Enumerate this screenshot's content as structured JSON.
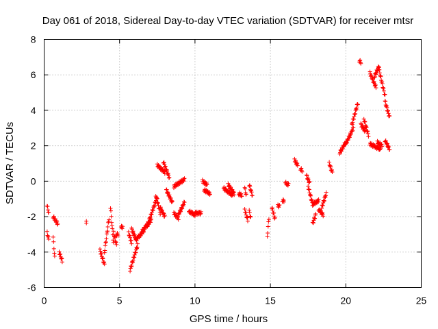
{
  "chart_data": {
    "type": "scatter",
    "title": "Day 061 of 2018, Sidereal Day-to-day VTEC variation (SDTVAR) for receiver mtsr",
    "xlabel": "GPS time / hours",
    "ylabel": "SDTVAR / TECUs",
    "xlim": [
      0,
      25
    ],
    "ylim": [
      -6,
      8
    ],
    "x_ticks": [
      0,
      5,
      10,
      15,
      20,
      25
    ],
    "y_ticks": [
      -6,
      -4,
      -2,
      0,
      2,
      4,
      6,
      8
    ],
    "x_tick_labels": [
      "0",
      "5",
      "10",
      "15",
      "20",
      "25"
    ],
    "y_tick_labels": [
      "-6",
      "-4",
      "-2",
      "0",
      "2",
      "4",
      "6",
      "8"
    ],
    "grid": true,
    "marker": "plus",
    "color": "#ff0000",
    "segments": [
      {
        "t0": 0.2,
        "t1": 0.3,
        "v0": -1.4,
        "v1": -1.8
      },
      {
        "t0": 0.2,
        "t1": 0.3,
        "v0": -2.9,
        "v1": -3.3
      },
      {
        "t0": 0.6,
        "t1": 0.9,
        "v0": -2.0,
        "v1": -2.4
      },
      {
        "t0": 0.6,
        "t1": 0.7,
        "v0": -3.2,
        "v1": -4.3
      },
      {
        "t0": 1.0,
        "t1": 1.2,
        "v0": -4.0,
        "v1": -4.5
      },
      {
        "t0": 2.8,
        "t1": 2.8,
        "v0": -2.3,
        "v1": -2.3
      },
      {
        "t0": 3.7,
        "t1": 4.0,
        "v0": -3.9,
        "v1": -4.7
      },
      {
        "t0": 4.0,
        "t1": 4.3,
        "v0": -4.0,
        "v1": -2.1
      },
      {
        "t0": 4.4,
        "t1": 4.6,
        "v0": -1.5,
        "v1": -3.5
      },
      {
        "t0": 4.6,
        "t1": 4.8,
        "v0": -2.9,
        "v1": -3.6
      },
      {
        "t0": 4.8,
        "t1": 4.9,
        "v0": -3.0,
        "v1": -3.0
      },
      {
        "t0": 5.1,
        "t1": 5.2,
        "v0": -2.6,
        "v1": -2.6
      },
      {
        "t0": 5.6,
        "t1": 5.8,
        "v0": -2.9,
        "v1": -3.5
      },
      {
        "t0": 5.7,
        "t1": 6.2,
        "v0": -5.0,
        "v1": -3.6
      },
      {
        "t0": 5.8,
        "t1": 6.1,
        "v0": -2.7,
        "v1": -3.3
      },
      {
        "t0": 6.1,
        "t1": 6.6,
        "v0": -3.3,
        "v1": -2.8
      },
      {
        "t0": 6.5,
        "t1": 7.1,
        "v0": -2.8,
        "v1": -2.2
      },
      {
        "t0": 6.8,
        "t1": 7.5,
        "v0": -2.6,
        "v1": -0.9
      },
      {
        "t0": 7.4,
        "t1": 7.7,
        "v0": -0.8,
        "v1": -1.8
      },
      {
        "t0": 7.7,
        "t1": 8.0,
        "v0": -1.5,
        "v1": -2.0
      },
      {
        "t0": 7.5,
        "t1": 8.0,
        "v0": 0.9,
        "v1": 0.5
      },
      {
        "t0": 7.9,
        "t1": 8.3,
        "v0": 1.1,
        "v1": 0.2
      },
      {
        "t0": 8.1,
        "t1": 8.5,
        "v0": -0.5,
        "v1": -1.2
      },
      {
        "t0": 8.6,
        "t1": 8.9,
        "v0": -1.8,
        "v1": -2.1
      },
      {
        "t0": 8.6,
        "t1": 9.3,
        "v0": -0.3,
        "v1": 0.1
      },
      {
        "t0": 8.9,
        "t1": 9.3,
        "v0": -1.9,
        "v1": -1.2
      },
      {
        "t0": 9.6,
        "t1": 10.0,
        "v0": -1.7,
        "v1": -1.9
      },
      {
        "t0": 10.0,
        "t1": 10.4,
        "v0": -1.8,
        "v1": -1.8
      },
      {
        "t0": 10.5,
        "t1": 10.8,
        "v0": 0.0,
        "v1": -0.2
      },
      {
        "t0": 10.6,
        "t1": 11.0,
        "v0": -0.5,
        "v1": -0.7
      },
      {
        "t0": 11.9,
        "t1": 12.5,
        "v0": -0.4,
        "v1": -0.8
      },
      {
        "t0": 12.2,
        "t1": 12.6,
        "v0": -0.2,
        "v1": -0.7
      },
      {
        "t0": 12.9,
        "t1": 13.1,
        "v0": -0.7,
        "v1": -0.8
      },
      {
        "t0": 13.3,
        "t1": 13.4,
        "v0": -0.4,
        "v1": -0.8
      },
      {
        "t0": 13.3,
        "t1": 13.5,
        "v0": -1.6,
        "v1": -2.2
      },
      {
        "t0": 13.6,
        "t1": 13.8,
        "v0": -0.2,
        "v1": -0.8
      },
      {
        "t0": 13.6,
        "t1": 13.7,
        "v0": -1.7,
        "v1": -2.1
      },
      {
        "t0": 14.8,
        "t1": 14.9,
        "v0": -3.1,
        "v1": -2.1
      },
      {
        "t0": 15.1,
        "t1": 15.3,
        "v0": -1.5,
        "v1": -2.1
      },
      {
        "t0": 15.5,
        "t1": 15.6,
        "v0": -1.4,
        "v1": -1.4
      },
      {
        "t0": 15.8,
        "t1": 15.9,
        "v0": -1.1,
        "v1": -1.1
      },
      {
        "t0": 16.0,
        "t1": 16.2,
        "v0": -0.1,
        "v1": -0.2
      },
      {
        "t0": 16.6,
        "t1": 16.8,
        "v0": 1.2,
        "v1": 0.9
      },
      {
        "t0": 17.0,
        "t1": 17.1,
        "v0": 0.7,
        "v1": 0.6
      },
      {
        "t0": 17.4,
        "t1": 17.6,
        "v0": 0.3,
        "v1": -0.1
      },
      {
        "t0": 17.5,
        "t1": 17.8,
        "v0": -0.3,
        "v1": -1.3
      },
      {
        "t0": 17.8,
        "t1": 18.2,
        "v0": -1.3,
        "v1": -1.1
      },
      {
        "t0": 17.8,
        "t1": 18.0,
        "v0": -2.4,
        "v1": -1.9
      },
      {
        "t0": 18.2,
        "t1": 18.5,
        "v0": -1.6,
        "v1": -1.9
      },
      {
        "t0": 18.4,
        "t1": 18.7,
        "v0": -1.5,
        "v1": -0.7
      },
      {
        "t0": 18.9,
        "t1": 19.1,
        "v0": 1.0,
        "v1": 0.5
      },
      {
        "t0": 19.6,
        "t1": 20.0,
        "v0": 1.6,
        "v1": 2.2
      },
      {
        "t0": 20.0,
        "t1": 20.5,
        "v0": 2.1,
        "v1": 3.0
      },
      {
        "t0": 20.4,
        "t1": 20.8,
        "v0": 3.2,
        "v1": 4.4
      },
      {
        "t0": 20.9,
        "t1": 21.0,
        "v0": 6.8,
        "v1": 6.7
      },
      {
        "t0": 21.0,
        "t1": 21.3,
        "v0": 3.2,
        "v1": 2.8
      },
      {
        "t0": 21.2,
        "t1": 21.5,
        "v0": 3.5,
        "v1": 2.6
      },
      {
        "t0": 21.6,
        "t1": 22.3,
        "v0": 2.1,
        "v1": 1.8
      },
      {
        "t0": 21.6,
        "t1": 22.0,
        "v0": 6.1,
        "v1": 5.3
      },
      {
        "t0": 21.9,
        "t1": 22.2,
        "v0": 5.9,
        "v1": 6.5
      },
      {
        "t0": 22.2,
        "t1": 22.6,
        "v0": 6.3,
        "v1": 4.8
      },
      {
        "t0": 22.1,
        "t1": 22.4,
        "v0": 2.2,
        "v1": 2.0
      },
      {
        "t0": 22.6,
        "t1": 22.9,
        "v0": 2.3,
        "v1": 1.8
      },
      {
        "t0": 22.6,
        "t1": 22.9,
        "v0": 4.5,
        "v1": 3.6
      }
    ]
  }
}
